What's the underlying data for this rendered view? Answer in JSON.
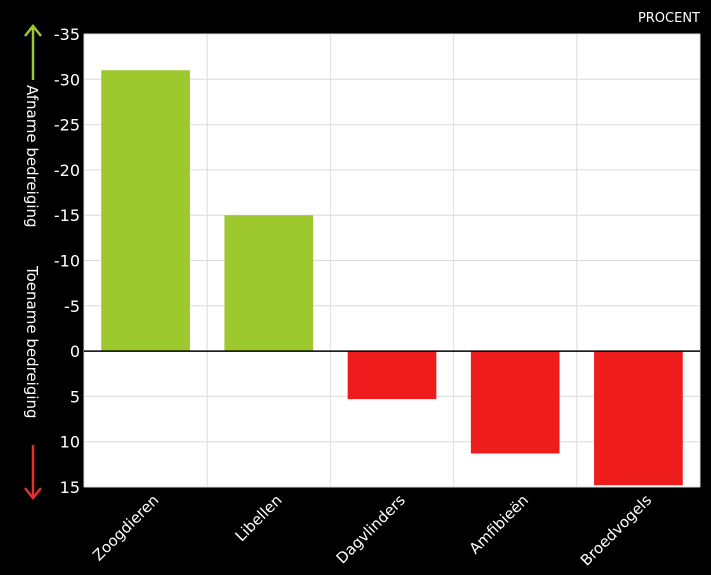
{
  "chart_data": {
    "type": "bar",
    "title": "",
    "unit_label": "PROCENT",
    "ylabel_top": "Afname bedreiging",
    "ylabel_bottom": "Toename bedreiging",
    "categories": [
      "Zoogdieren",
      "Libellen",
      "Dagvlinders",
      "Amfibieën",
      "Broedvogels"
    ],
    "values": [
      -31,
      -15,
      5.3,
      11.3,
      14.8
    ],
    "ylim": [
      -35,
      15
    ],
    "y_ticks": [
      -35,
      -30,
      -25,
      -20,
      -15,
      -10,
      -5,
      0,
      5,
      10,
      15
    ],
    "y_axis_inverted": true,
    "grid": true,
    "colors": {
      "negative": "#9dc92e",
      "positive": "#ee1c1c",
      "arrow_up": "#9dc92e",
      "arrow_down": "#e53030",
      "background": "#000000",
      "plot_background": "#ffffff",
      "grid": "#dcdcdc",
      "text": "#ffffff"
    }
  }
}
